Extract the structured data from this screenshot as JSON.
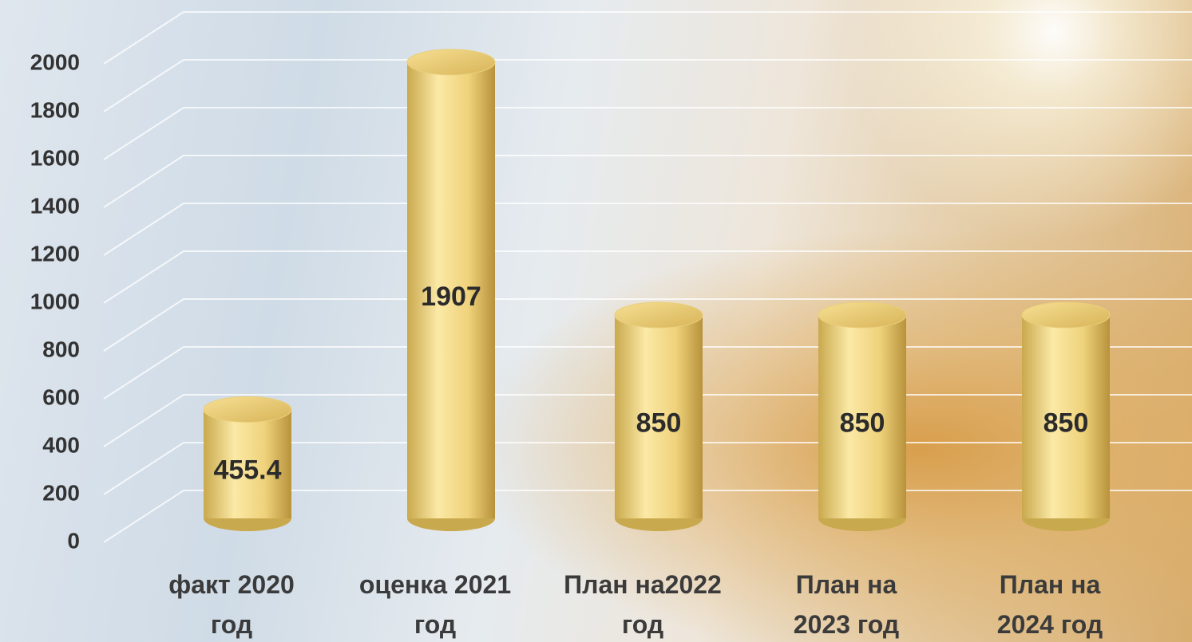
{
  "chart_data": {
    "type": "bar3d",
    "categories": [
      "факт 2020\nгод",
      "оценка 2021\nгод",
      "План на2022\nгод",
      "План на\n2023 год",
      "План на\n2024 год"
    ],
    "values": [
      455.4,
      1907,
      850,
      850,
      850
    ],
    "color": "#f3d77e",
    "ylim": [
      0,
      2000
    ],
    "yticks": [
      0,
      200,
      400,
      600,
      800,
      1000,
      1200,
      1400,
      1600,
      1800,
      2000
    ],
    "grid": true
  }
}
